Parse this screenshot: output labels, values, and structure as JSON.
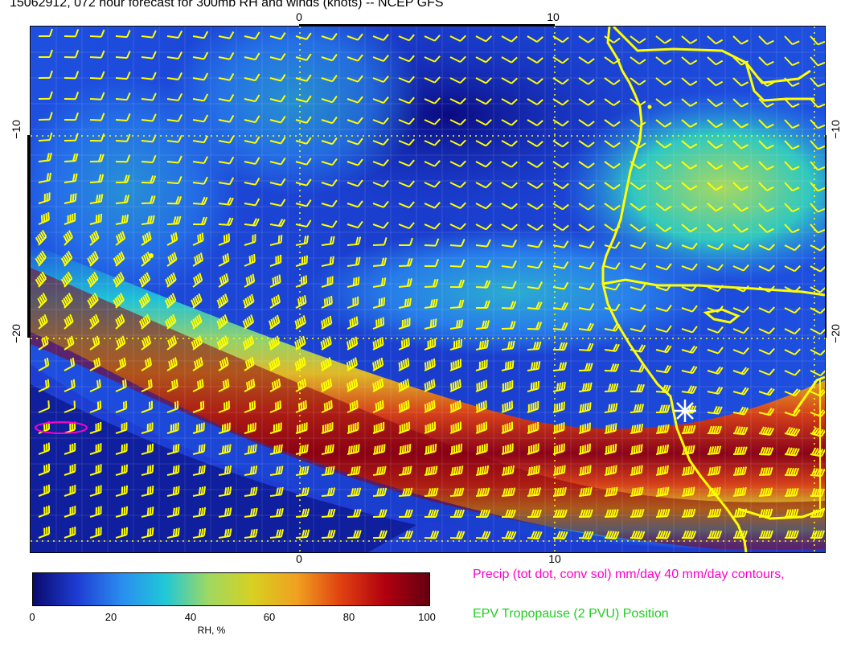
{
  "header": {
    "title": "15062912, 072 hour forecast for 300mb RH and winds (knots) -- NCEP GFS"
  },
  "map": {
    "x_ticks_top": [
      "0",
      "10"
    ],
    "x_ticks_bottom": [
      "0",
      "10"
    ],
    "y_ticks_left": [
      "−10",
      "−20"
    ],
    "y_ticks_right": [
      "−10",
      "−20"
    ],
    "overlay_color": "#ffff00",
    "precip_contour_color": "#ff00cc",
    "rh_field": "shaded",
    "wind_barbs": "yellow",
    "gridlines": "dotted yellow",
    "marker": "white asterisk"
  },
  "colorbar": {
    "ticks": [
      "0",
      "20",
      "40",
      "60",
      "80",
      "100"
    ],
    "label": "RH, %",
    "stops": [
      "#0a0a6e",
      "#1e3cd2",
      "#2a8cf0",
      "#20c8d8",
      "#a0d860",
      "#d8d020",
      "#f0a020",
      "#e04010",
      "#b00010",
      "#640010"
    ]
  },
  "legend": {
    "precip": "Precip (tot dot, conv sol) mm/day 40 mm/day contours,",
    "epv": "EPV Tropopause (2 PVU) Position",
    "precip_color": "#ff00cc",
    "epv_color": "#22cc22"
  }
}
